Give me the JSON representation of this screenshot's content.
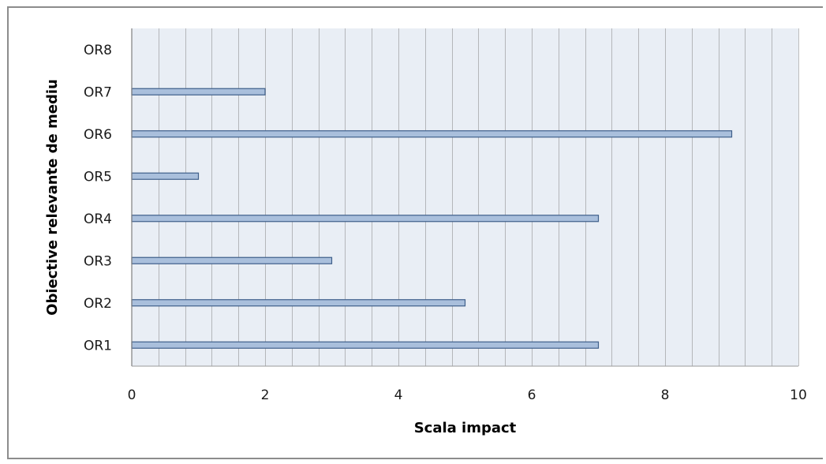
{
  "chart_data": {
    "type": "bar",
    "orientation": "horizontal",
    "categories": [
      "OR1",
      "OR2",
      "OR3",
      "OR4",
      "OR5",
      "OR6",
      "OR7",
      "OR8"
    ],
    "values": [
      7,
      5,
      3,
      7,
      1,
      9,
      2,
      0
    ],
    "xlabel": "Scala impact",
    "ylabel": "Obiective relevante de mediu",
    "xlim": [
      0,
      10
    ],
    "xticks": [
      "0",
      "2",
      "4",
      "6",
      "8",
      "10"
    ],
    "grid": "vertical",
    "legend": "none",
    "colors": {
      "plot_background": "#e9eef5",
      "bar_fill": "#a9bfdc",
      "bar_stroke": "#3f5f8a",
      "gridline": "#8a8a8a"
    }
  }
}
